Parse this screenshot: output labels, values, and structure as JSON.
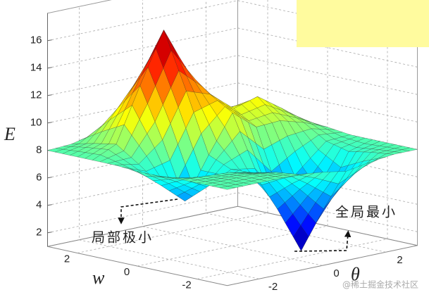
{
  "chart_data": {
    "type": "surface",
    "zlabel": "E",
    "ylabel": "w",
    "xlabel": "θ",
    "x": [
      -3,
      -2.25,
      -1.5,
      -0.75,
      0,
      0.75,
      1.5,
      2.25,
      3
    ],
    "y": [
      -3,
      -2.25,
      -1.5,
      -0.75,
      0,
      0.75,
      1.5,
      2.25,
      3
    ],
    "values": [
      [
        8,
        8,
        8,
        8,
        7.8,
        7.5,
        7.8,
        8,
        8
      ],
      [
        8,
        8,
        8,
        7.8,
        6.2,
        4.4,
        6.2,
        7.8,
        8
      ],
      [
        8,
        7.9,
        7.8,
        7.4,
        4.4,
        1,
        4.4,
        7.5,
        8
      ],
      [
        7.9,
        7.3,
        6.4,
        7.3,
        7,
        4.8,
        6.4,
        7.9,
        8
      ],
      [
        7.9,
        6.5,
        5,
        8,
        10.7,
        9.3,
        9.4,
        8.9,
        8.2
      ],
      [
        8,
        7.7,
        9.1,
        12.3,
        11.7,
        10.3,
        10.8,
        9.6,
        8.3
      ],
      [
        8,
        8.8,
        12.7,
        16.4,
        13,
        9.8,
        9.6,
        8.9,
        8.2
      ],
      [
        8,
        8.5,
        10.7,
        12.8,
        10.7,
        8.6,
        8.3,
        8.2,
        8
      ],
      [
        8,
        8.1,
        8.5,
        8.9,
        8.5,
        8.1,
        8,
        8,
        8
      ]
    ],
    "colormap": "jet",
    "xlim": [
      -3,
      3
    ],
    "ylim": [
      -3,
      3
    ],
    "zlim": [
      1,
      18
    ],
    "xticks": [
      -2,
      0,
      2
    ],
    "yticks": [
      -2,
      0,
      2
    ],
    "zticks": [
      2,
      4,
      6,
      8,
      10,
      12,
      14,
      16
    ],
    "grid": true,
    "annotations": [
      "局部极小",
      "全局最小"
    ],
    "watermark": "@稀土掘金技术社区"
  }
}
